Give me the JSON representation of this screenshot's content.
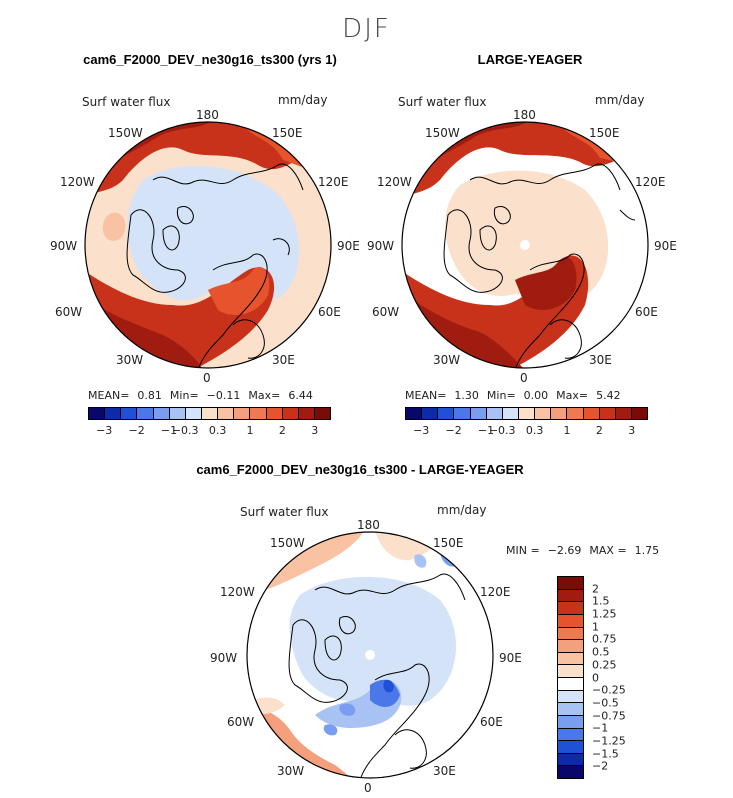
{
  "season": "DJF",
  "panels": [
    {
      "title": "cam6_F2000_DEV_ne30g16_ts300 (yrs 1)",
      "var_label": "Surf water flux",
      "units": "mm/day",
      "stats": {
        "mean_label": "MEAN=",
        "mean": "0.81",
        "min_label": "Min=",
        "min": "−0.11",
        "max_label": "Max=",
        "max": "6.44"
      },
      "lon_labels": [
        "180",
        "150E",
        "120E",
        "90E",
        "60E",
        "30E",
        "0",
        "30W",
        "60W",
        "90W",
        "120W",
        "150W"
      ]
    },
    {
      "title": "LARGE-YEAGER",
      "var_label": "Surf water flux",
      "units": "mm/day",
      "stats": {
        "mean_label": "MEAN=",
        "mean": "1.30",
        "min_label": "Min=",
        "min": "0.00",
        "max_label": "Max=",
        "max": "5.42"
      },
      "lon_labels": [
        "180",
        "150E",
        "120E",
        "90E",
        "60E",
        "30E",
        "0",
        "30W",
        "60W",
        "90W",
        "120W",
        "150W"
      ]
    },
    {
      "title": "cam6_F2000_DEV_ne30g16_ts300 - LARGE-YEAGER",
      "var_label": "Surf water flux",
      "units": "mm/day",
      "stats": {
        "min_label": "MIN =",
        "min": "−2.69",
        "max_label": "MAX =",
        "max": "1.75"
      },
      "lon_labels": [
        "180",
        "150E",
        "120E",
        "90E",
        "60E",
        "30E",
        "0",
        "30W",
        "60W",
        "90W",
        "120W",
        "150W"
      ]
    }
  ],
  "colorbar_main": {
    "colors": [
      "#08086b",
      "#0c2ba8",
      "#1f50d6",
      "#4a78e8",
      "#7a9eef",
      "#a9c2f4",
      "#d5e3f8",
      "#fbe0cc",
      "#f8c2a3",
      "#f4a07c",
      "#ef7a52",
      "#e6542d",
      "#c8321a",
      "#a01c10",
      "#7a0c08"
    ],
    "ticks": [
      "−3",
      "−2",
      "−1",
      "−0.3",
      "0.3",
      "1",
      "2",
      "3"
    ]
  },
  "colorbar_diff": {
    "colors": [
      "#7a0c08",
      "#a01c10",
      "#c8321a",
      "#e6542d",
      "#ef7a52",
      "#f4a07c",
      "#f8c2a3",
      "#fbe0cc",
      "#ffffff",
      "#d5e3f8",
      "#a9c2f4",
      "#7a9eef",
      "#4a78e8",
      "#1f50d6",
      "#0c2ba8",
      "#08086b"
    ],
    "ticks": [
      "2",
      "1.5",
      "1.25",
      "1",
      "0.75",
      "0.5",
      "0.25",
      "0",
      "−0.25",
      "−0.5",
      "−0.75",
      "−1",
      "−1.25",
      "−1.5",
      "−2"
    ]
  }
}
